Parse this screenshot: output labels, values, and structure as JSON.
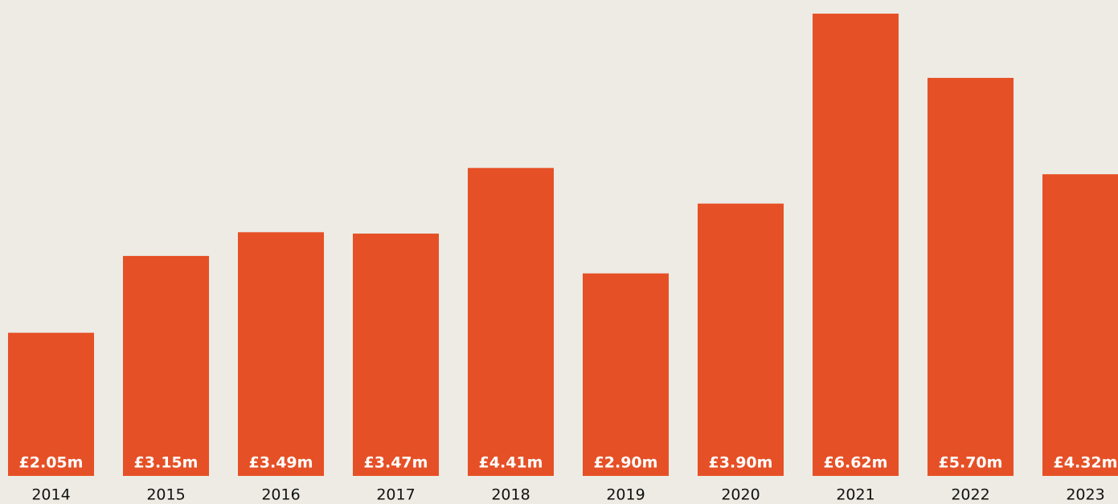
{
  "chart_data": {
    "type": "bar",
    "categories": [
      "2014",
      "2015",
      "2016",
      "2017",
      "2018",
      "2019",
      "2020",
      "2021",
      "2022",
      "2023"
    ],
    "values": [
      2.05,
      3.15,
      3.49,
      3.47,
      4.41,
      2.9,
      3.9,
      6.62,
      5.7,
      4.32
    ],
    "value_labels": [
      "£2.05m",
      "£3.15m",
      "£3.49m",
      "£3.47m",
      "£4.41m",
      "£2.90m",
      "£3.90m",
      "£6.62m",
      "£5.70m",
      "£4.32m"
    ],
    "color": "#e65026"
  }
}
